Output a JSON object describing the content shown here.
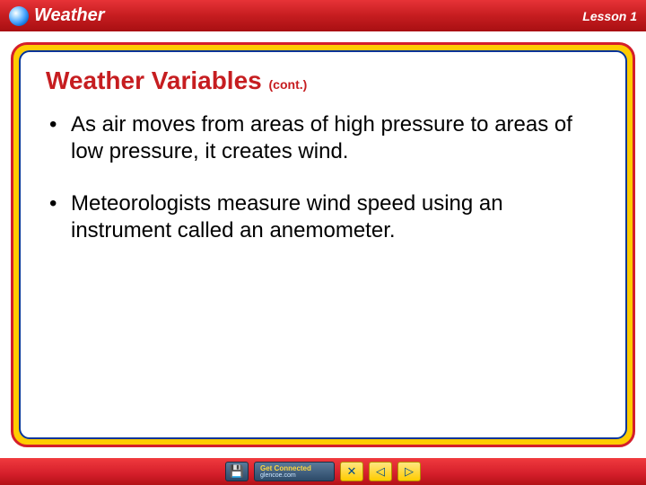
{
  "header": {
    "title": "Weather",
    "lesson": "Lesson 1"
  },
  "content": {
    "title": "Weather Variables",
    "cont": "(cont.)",
    "title_color": "#c61d20",
    "title_fontsize": 28,
    "body_fontsize": 24,
    "bullets": [
      "As air moves from areas of high pressure to areas of low pressure, it creates wind.",
      "Meteorologists measure wind speed using an instrument called an anemometer."
    ]
  },
  "frame": {
    "outer_border_color": "#d41e2a",
    "inner_border_color": "#003399",
    "fill_color": "#ffcc00",
    "content_bg": "#ffffff"
  },
  "footer": {
    "connected_line1": "Get Connected",
    "connected_line2": "glencoe.com",
    "buttons": [
      {
        "name": "save-icon",
        "glyph": "💾"
      },
      {
        "name": "connected-link",
        "glyph": ""
      },
      {
        "name": "close-icon",
        "glyph": "✕"
      },
      {
        "name": "prev-icon",
        "glyph": "◁"
      },
      {
        "name": "next-icon",
        "glyph": "▷"
      }
    ]
  },
  "colors": {
    "header_gradient": [
      "#e73337",
      "#c61d20",
      "#a80f12"
    ],
    "footer_gradient": [
      "#f03a3e",
      "#d41e2a",
      "#b31217"
    ]
  }
}
